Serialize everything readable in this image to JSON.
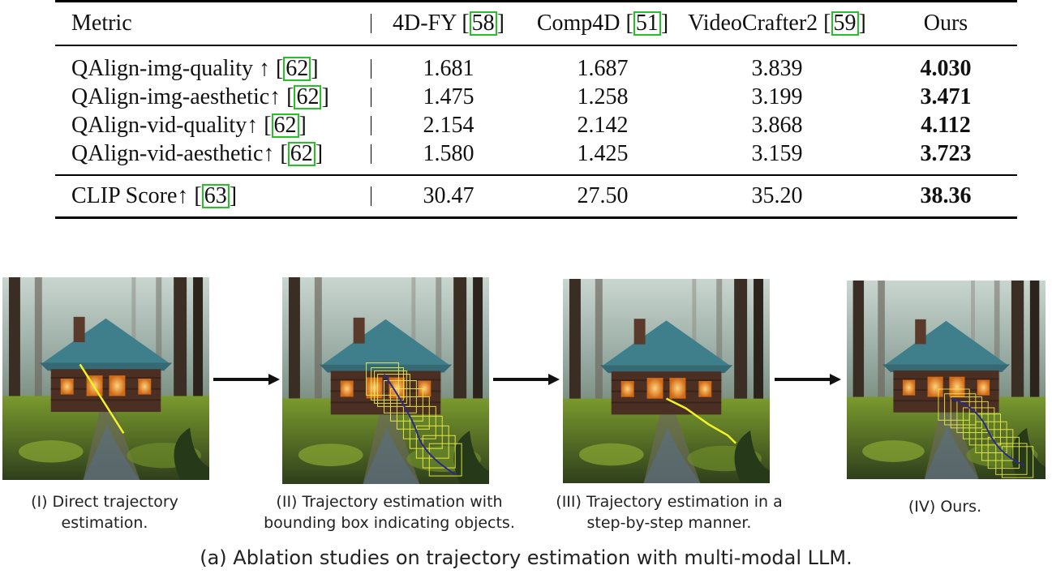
{
  "table": {
    "headers": [
      {
        "text": "Metric",
        "ref": ""
      },
      {
        "text": "4D-FY [",
        "ref": "58"
      },
      {
        "text": "Comp4D [",
        "ref": "51"
      },
      {
        "text": "VideoCrafter2 [",
        "ref": "59"
      },
      {
        "text": "Ours",
        "ref": ""
      }
    ],
    "rows": [
      {
        "metric": "QAlign-img-quality ↑ [",
        "ref": "62",
        "values": [
          "1.681",
          "1.687",
          "3.839"
        ],
        "ours": "4.030"
      },
      {
        "metric": "QAlign-img-aesthetic↑ [",
        "ref": "62",
        "values": [
          "1.475",
          "1.258",
          "3.199"
        ],
        "ours": "3.471"
      },
      {
        "metric": "QAlign-vid-quality↑ [",
        "ref": "62",
        "values": [
          "2.154",
          "2.142",
          "3.868"
        ],
        "ours": "4.112"
      },
      {
        "metric": "QAlign-vid-aesthetic↑ [",
        "ref": "62",
        "values": [
          "1.580",
          "1.425",
          "3.159"
        ],
        "ours": "3.723"
      }
    ],
    "clip_row": {
      "metric": "CLIP Score↑ [",
      "ref": "63",
      "values": [
        "30.47",
        "27.50",
        "35.20"
      ],
      "ours": "38.36"
    }
  },
  "figure": {
    "panels": [
      {
        "caption_line1": "(I) Direct trajectory",
        "caption_line2": "estimation."
      },
      {
        "caption_line1": "(II)  Trajectory estimation with",
        "caption_line2": "bounding box indicating objects."
      },
      {
        "caption_line1": "(III)  Trajectory estimation in a",
        "caption_line2": "step-by-step manner."
      },
      {
        "caption_line1": "(IV) Ours.",
        "caption_line2": ""
      }
    ],
    "caption": "(a) Ablation studies on trajectory estimation with multi-modal LLM."
  },
  "colors": {
    "ref_box": "#22c322",
    "trajectory": "#f0f020",
    "path": "#2a2a8a"
  }
}
